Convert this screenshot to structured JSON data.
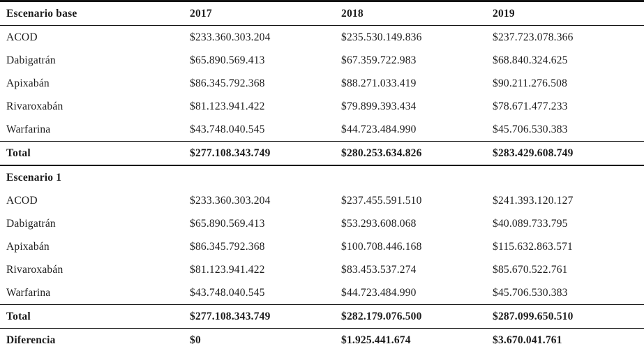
{
  "table": {
    "title_semantic": "Comparación de costos por escenario",
    "currency_symbol": "$",
    "columns": {
      "label": "Escenario base",
      "year1": "2017",
      "year2": "2018",
      "year3": "2019"
    },
    "rows": [
      {
        "label": "ACOD",
        "v1": "$233.360.303.204",
        "v2": "$235.530.149.836",
        "v3": "$237.723.078.366"
      },
      {
        "label": "Dabigatrán",
        "v1": "$65.890.569.413",
        "v2": "$67.359.722.983",
        "v3": "$68.840.324.625"
      },
      {
        "label": "Apixabán",
        "v1": "$86.345.792.368",
        "v2": "$88.271.033.419",
        "v3": "$90.211.276.508"
      },
      {
        "label": "Rivaroxabán",
        "v1": "$81.123.941.422",
        "v2": "$79.899.393.434",
        "v3": "$78.671.477.233"
      },
      {
        "label": "Warfarina",
        "v1": "$43.748.040.545",
        "v2": "$44.723.484.990",
        "v3": "$45.706.530.383"
      },
      {
        "label": "Total",
        "v1": "$277.108.343.749",
        "v2": "$280.253.634.826",
        "v3": "$283.429.608.749"
      },
      {
        "label": "Escenario 1",
        "v1": "",
        "v2": "",
        "v3": ""
      },
      {
        "label": "ACOD",
        "v1": "$233.360.303.204",
        "v2": "$237.455.591.510",
        "v3": "$241.393.120.127"
      },
      {
        "label": "Dabigatrán",
        "v1": "$65.890.569.413",
        "v2": "$53.293.608.068",
        "v3": "$40.089.733.795"
      },
      {
        "label": "Apixabán",
        "v1": "$86.345.792.368",
        "v2": "$100.708.446.168",
        "v3": "$115.632.863.571"
      },
      {
        "label": "Rivaroxabán",
        "v1": "$81.123.941.422",
        "v2": "$83.453.537.274",
        "v3": "$85.670.522.761"
      },
      {
        "label": "Warfarina",
        "v1": "$43.748.040.545",
        "v2": "$44.723.484.990",
        "v3": "$45.706.530.383"
      },
      {
        "label": "Total",
        "v1": "$277.108.343.749",
        "v2": "$282.179.076.500",
        "v3": "$287.099.650.510"
      },
      {
        "label": "Diferencia",
        "v1": "$0",
        "v2": "$1.925.441.674",
        "v3": "$3.670.041.761"
      }
    ]
  }
}
